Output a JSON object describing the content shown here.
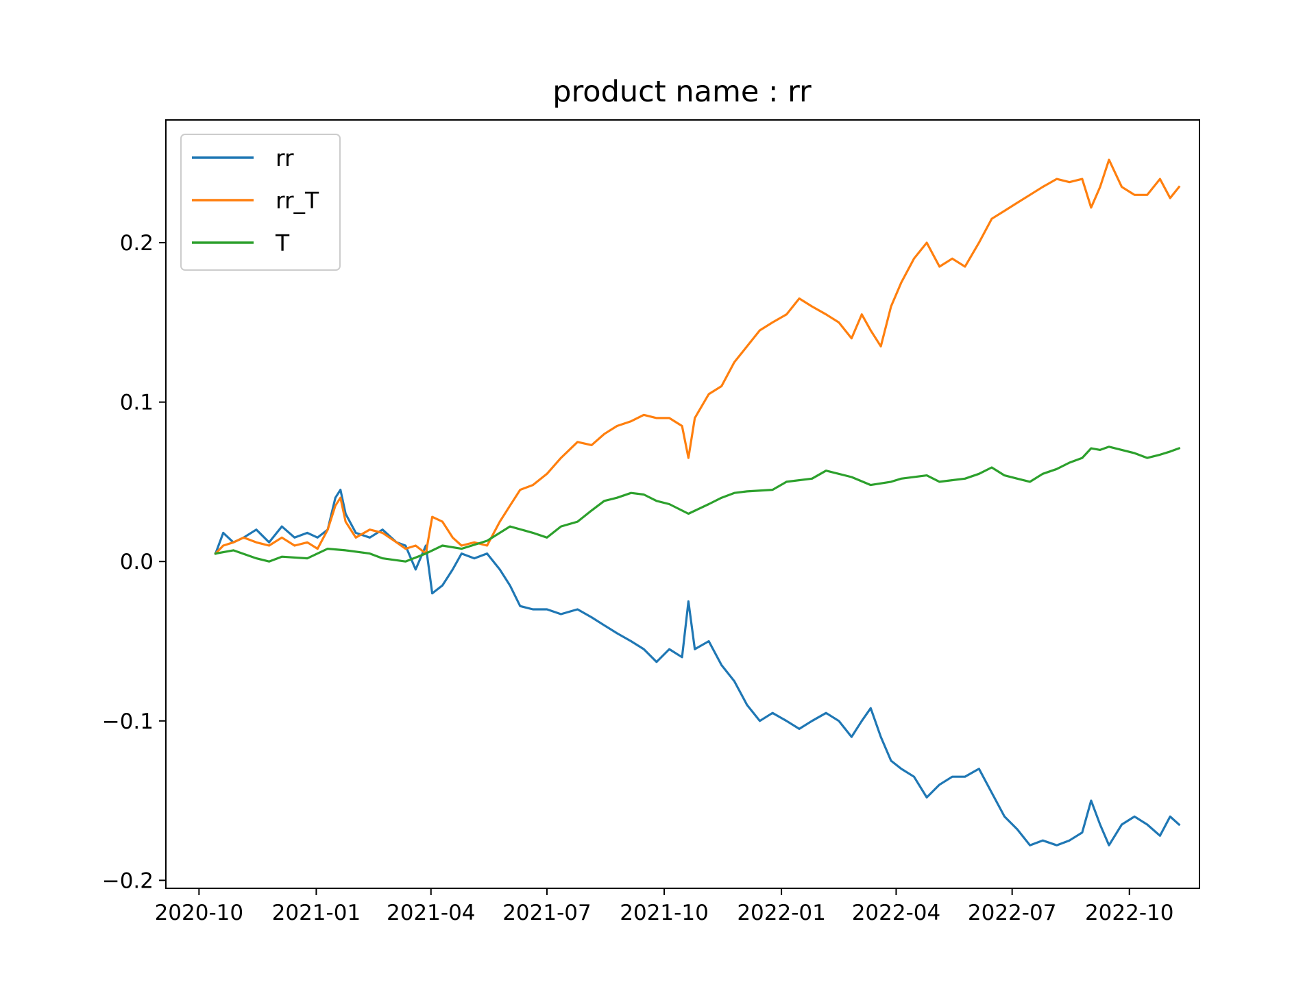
{
  "chart_data": {
    "type": "line",
    "title": "product name :    rr",
    "xlabel": "",
    "ylabel": "",
    "xlim": [
      "2020-09-05",
      "2022-11-25"
    ],
    "ylim": [
      -0.205,
      0.277
    ],
    "x_ticks": [
      "2020-10",
      "2021-01",
      "2021-04",
      "2021-07",
      "2021-10",
      "2022-01",
      "2022-04",
      "2022-07",
      "2022-10"
    ],
    "y_ticks": [
      -0.2,
      -0.1,
      0.0,
      0.1,
      0.2
    ],
    "y_tick_labels": [
      "−0.2",
      "−0.1",
      "0.0",
      "0.1",
      "0.2"
    ],
    "grid": false,
    "legend_position": "upper-left",
    "series": [
      {
        "name": "rr",
        "color": "#1f77b4",
        "points": [
          [
            "2020-10-14",
            0.005
          ],
          [
            "2020-10-20",
            0.018
          ],
          [
            "2020-10-28",
            0.012
          ],
          [
            "2020-11-05",
            0.015
          ],
          [
            "2020-11-15",
            0.02
          ],
          [
            "2020-11-25",
            0.012
          ],
          [
            "2020-12-05",
            0.022
          ],
          [
            "2020-12-15",
            0.015
          ],
          [
            "2020-12-25",
            0.018
          ],
          [
            "2021-01-02",
            0.015
          ],
          [
            "2021-01-10",
            0.02
          ],
          [
            "2021-01-16",
            0.04
          ],
          [
            "2021-01-20",
            0.045
          ],
          [
            "2021-01-24",
            0.03
          ],
          [
            "2021-02-01",
            0.018
          ],
          [
            "2021-02-12",
            0.015
          ],
          [
            "2021-02-22",
            0.02
          ],
          [
            "2021-03-05",
            0.012
          ],
          [
            "2021-03-12",
            0.01
          ],
          [
            "2021-03-20",
            -0.005
          ],
          [
            "2021-03-28",
            0.01
          ],
          [
            "2021-04-02",
            -0.02
          ],
          [
            "2021-04-10",
            -0.015
          ],
          [
            "2021-04-18",
            -0.005
          ],
          [
            "2021-04-25",
            0.005
          ],
          [
            "2021-05-05",
            0.002
          ],
          [
            "2021-05-15",
            0.005
          ],
          [
            "2021-05-25",
            -0.005
          ],
          [
            "2021-06-02",
            -0.015
          ],
          [
            "2021-06-10",
            -0.028
          ],
          [
            "2021-06-20",
            -0.03
          ],
          [
            "2021-07-01",
            -0.03
          ],
          [
            "2021-07-12",
            -0.033
          ],
          [
            "2021-07-25",
            -0.03
          ],
          [
            "2021-08-05",
            -0.035
          ],
          [
            "2021-08-15",
            -0.04
          ],
          [
            "2021-08-25",
            -0.045
          ],
          [
            "2021-09-05",
            -0.05
          ],
          [
            "2021-09-15",
            -0.055
          ],
          [
            "2021-09-25",
            -0.063
          ],
          [
            "2021-10-05",
            -0.055
          ],
          [
            "2021-10-15",
            -0.06
          ],
          [
            "2021-10-20",
            -0.025
          ],
          [
            "2021-10-25",
            -0.055
          ],
          [
            "2021-11-05",
            -0.05
          ],
          [
            "2021-11-15",
            -0.065
          ],
          [
            "2021-11-25",
            -0.075
          ],
          [
            "2021-12-05",
            -0.09
          ],
          [
            "2021-12-15",
            -0.1
          ],
          [
            "2021-12-25",
            -0.095
          ],
          [
            "2022-01-05",
            -0.1
          ],
          [
            "2022-01-15",
            -0.105
          ],
          [
            "2022-01-25",
            -0.1
          ],
          [
            "2022-02-05",
            -0.095
          ],
          [
            "2022-02-15",
            -0.1
          ],
          [
            "2022-02-25",
            -0.11
          ],
          [
            "2022-03-05",
            -0.1
          ],
          [
            "2022-03-12",
            -0.092
          ],
          [
            "2022-03-20",
            -0.11
          ],
          [
            "2022-03-28",
            -0.125
          ],
          [
            "2022-04-05",
            -0.13
          ],
          [
            "2022-04-15",
            -0.135
          ],
          [
            "2022-04-25",
            -0.148
          ],
          [
            "2022-05-05",
            -0.14
          ],
          [
            "2022-05-15",
            -0.135
          ],
          [
            "2022-05-25",
            -0.135
          ],
          [
            "2022-06-05",
            -0.13
          ],
          [
            "2022-06-15",
            -0.145
          ],
          [
            "2022-06-25",
            -0.16
          ],
          [
            "2022-07-05",
            -0.168
          ],
          [
            "2022-07-15",
            -0.178
          ],
          [
            "2022-07-25",
            -0.175
          ],
          [
            "2022-08-05",
            -0.178
          ],
          [
            "2022-08-15",
            -0.175
          ],
          [
            "2022-08-25",
            -0.17
          ],
          [
            "2022-09-01",
            -0.15
          ],
          [
            "2022-09-08",
            -0.165
          ],
          [
            "2022-09-15",
            -0.178
          ],
          [
            "2022-09-25",
            -0.165
          ],
          [
            "2022-10-05",
            -0.16
          ],
          [
            "2022-10-15",
            -0.165
          ],
          [
            "2022-10-25",
            -0.172
          ],
          [
            "2022-11-02",
            -0.16
          ],
          [
            "2022-11-09",
            -0.165
          ]
        ]
      },
      {
        "name": "rr_T",
        "color": "#ff7f0e",
        "points": [
          [
            "2020-10-14",
            0.005
          ],
          [
            "2020-10-20",
            0.01
          ],
          [
            "2020-10-28",
            0.012
          ],
          [
            "2020-11-05",
            0.015
          ],
          [
            "2020-11-15",
            0.012
          ],
          [
            "2020-11-25",
            0.01
          ],
          [
            "2020-12-05",
            0.015
          ],
          [
            "2020-12-15",
            0.01
          ],
          [
            "2020-12-25",
            0.012
          ],
          [
            "2021-01-02",
            0.008
          ],
          [
            "2021-01-10",
            0.02
          ],
          [
            "2021-01-16",
            0.035
          ],
          [
            "2021-01-20",
            0.04
          ],
          [
            "2021-01-24",
            0.025
          ],
          [
            "2021-02-01",
            0.015
          ],
          [
            "2021-02-12",
            0.02
          ],
          [
            "2021-02-22",
            0.018
          ],
          [
            "2021-03-05",
            0.012
          ],
          [
            "2021-03-12",
            0.008
          ],
          [
            "2021-03-20",
            0.01
          ],
          [
            "2021-03-28",
            0.005
          ],
          [
            "2021-04-02",
            0.028
          ],
          [
            "2021-04-10",
            0.025
          ],
          [
            "2021-04-18",
            0.015
          ],
          [
            "2021-04-25",
            0.01
          ],
          [
            "2021-05-05",
            0.012
          ],
          [
            "2021-05-15",
            0.01
          ],
          [
            "2021-05-25",
            0.025
          ],
          [
            "2021-06-02",
            0.035
          ],
          [
            "2021-06-10",
            0.045
          ],
          [
            "2021-06-20",
            0.048
          ],
          [
            "2021-07-01",
            0.055
          ],
          [
            "2021-07-12",
            0.065
          ],
          [
            "2021-07-25",
            0.075
          ],
          [
            "2021-08-05",
            0.073
          ],
          [
            "2021-08-15",
            0.08
          ],
          [
            "2021-08-25",
            0.085
          ],
          [
            "2021-09-05",
            0.088
          ],
          [
            "2021-09-15",
            0.092
          ],
          [
            "2021-09-25",
            0.09
          ],
          [
            "2021-10-05",
            0.09
          ],
          [
            "2021-10-15",
            0.085
          ],
          [
            "2021-10-20",
            0.065
          ],
          [
            "2021-10-25",
            0.09
          ],
          [
            "2021-11-05",
            0.105
          ],
          [
            "2021-11-15",
            0.11
          ],
          [
            "2021-11-25",
            0.125
          ],
          [
            "2021-12-05",
            0.135
          ],
          [
            "2021-12-15",
            0.145
          ],
          [
            "2021-12-25",
            0.15
          ],
          [
            "2022-01-05",
            0.155
          ],
          [
            "2022-01-15",
            0.165
          ],
          [
            "2022-01-25",
            0.16
          ],
          [
            "2022-02-05",
            0.155
          ],
          [
            "2022-02-15",
            0.15
          ],
          [
            "2022-02-25",
            0.14
          ],
          [
            "2022-03-05",
            0.155
          ],
          [
            "2022-03-12",
            0.145
          ],
          [
            "2022-03-20",
            0.135
          ],
          [
            "2022-03-28",
            0.16
          ],
          [
            "2022-04-05",
            0.175
          ],
          [
            "2022-04-15",
            0.19
          ],
          [
            "2022-04-25",
            0.2
          ],
          [
            "2022-05-05",
            0.185
          ],
          [
            "2022-05-15",
            0.19
          ],
          [
            "2022-05-25",
            0.185
          ],
          [
            "2022-06-05",
            0.2
          ],
          [
            "2022-06-15",
            0.215
          ],
          [
            "2022-06-25",
            0.22
          ],
          [
            "2022-07-05",
            0.225
          ],
          [
            "2022-07-15",
            0.23
          ],
          [
            "2022-07-25",
            0.235
          ],
          [
            "2022-08-05",
            0.24
          ],
          [
            "2022-08-15",
            0.238
          ],
          [
            "2022-08-25",
            0.24
          ],
          [
            "2022-09-01",
            0.222
          ],
          [
            "2022-09-08",
            0.235
          ],
          [
            "2022-09-15",
            0.252
          ],
          [
            "2022-09-25",
            0.235
          ],
          [
            "2022-10-05",
            0.23
          ],
          [
            "2022-10-15",
            0.23
          ],
          [
            "2022-10-25",
            0.24
          ],
          [
            "2022-11-02",
            0.228
          ],
          [
            "2022-11-09",
            0.235
          ]
        ]
      },
      {
        "name": "T",
        "color": "#2ca02c",
        "points": [
          [
            "2020-10-14",
            0.005
          ],
          [
            "2020-10-28",
            0.007
          ],
          [
            "2020-11-15",
            0.002
          ],
          [
            "2020-11-25",
            0.0
          ],
          [
            "2020-12-05",
            0.003
          ],
          [
            "2020-12-25",
            0.002
          ],
          [
            "2021-01-10",
            0.008
          ],
          [
            "2021-01-24",
            0.007
          ],
          [
            "2021-02-12",
            0.005
          ],
          [
            "2021-02-22",
            0.002
          ],
          [
            "2021-03-12",
            0.0
          ],
          [
            "2021-03-28",
            0.005
          ],
          [
            "2021-04-10",
            0.01
          ],
          [
            "2021-04-25",
            0.008
          ],
          [
            "2021-05-15",
            0.013
          ],
          [
            "2021-05-25",
            0.018
          ],
          [
            "2021-06-02",
            0.022
          ],
          [
            "2021-06-20",
            0.018
          ],
          [
            "2021-07-01",
            0.015
          ],
          [
            "2021-07-12",
            0.022
          ],
          [
            "2021-07-25",
            0.025
          ],
          [
            "2021-08-05",
            0.032
          ],
          [
            "2021-08-15",
            0.038
          ],
          [
            "2021-08-25",
            0.04
          ],
          [
            "2021-09-05",
            0.043
          ],
          [
            "2021-09-15",
            0.042
          ],
          [
            "2021-09-25",
            0.038
          ],
          [
            "2021-10-05",
            0.036
          ],
          [
            "2021-10-20",
            0.03
          ],
          [
            "2021-11-05",
            0.036
          ],
          [
            "2021-11-15",
            0.04
          ],
          [
            "2021-11-25",
            0.043
          ],
          [
            "2021-12-05",
            0.044
          ],
          [
            "2021-12-25",
            0.045
          ],
          [
            "2022-01-05",
            0.05
          ],
          [
            "2022-01-25",
            0.052
          ],
          [
            "2022-02-05",
            0.057
          ],
          [
            "2022-02-25",
            0.053
          ],
          [
            "2022-03-12",
            0.048
          ],
          [
            "2022-03-28",
            0.05
          ],
          [
            "2022-04-05",
            0.052
          ],
          [
            "2022-04-25",
            0.054
          ],
          [
            "2022-05-05",
            0.05
          ],
          [
            "2022-05-25",
            0.052
          ],
          [
            "2022-06-05",
            0.055
          ],
          [
            "2022-06-15",
            0.059
          ],
          [
            "2022-06-25",
            0.054
          ],
          [
            "2022-07-05",
            0.052
          ],
          [
            "2022-07-15",
            0.05
          ],
          [
            "2022-07-25",
            0.055
          ],
          [
            "2022-08-05",
            0.058
          ],
          [
            "2022-08-15",
            0.062
          ],
          [
            "2022-08-25",
            0.065
          ],
          [
            "2022-09-01",
            0.071
          ],
          [
            "2022-09-08",
            0.07
          ],
          [
            "2022-09-15",
            0.072
          ],
          [
            "2022-09-25",
            0.07
          ],
          [
            "2022-10-05",
            0.068
          ],
          [
            "2022-10-15",
            0.065
          ],
          [
            "2022-10-25",
            0.067
          ],
          [
            "2022-11-02",
            0.069
          ],
          [
            "2022-11-09",
            0.071
          ]
        ]
      }
    ]
  }
}
